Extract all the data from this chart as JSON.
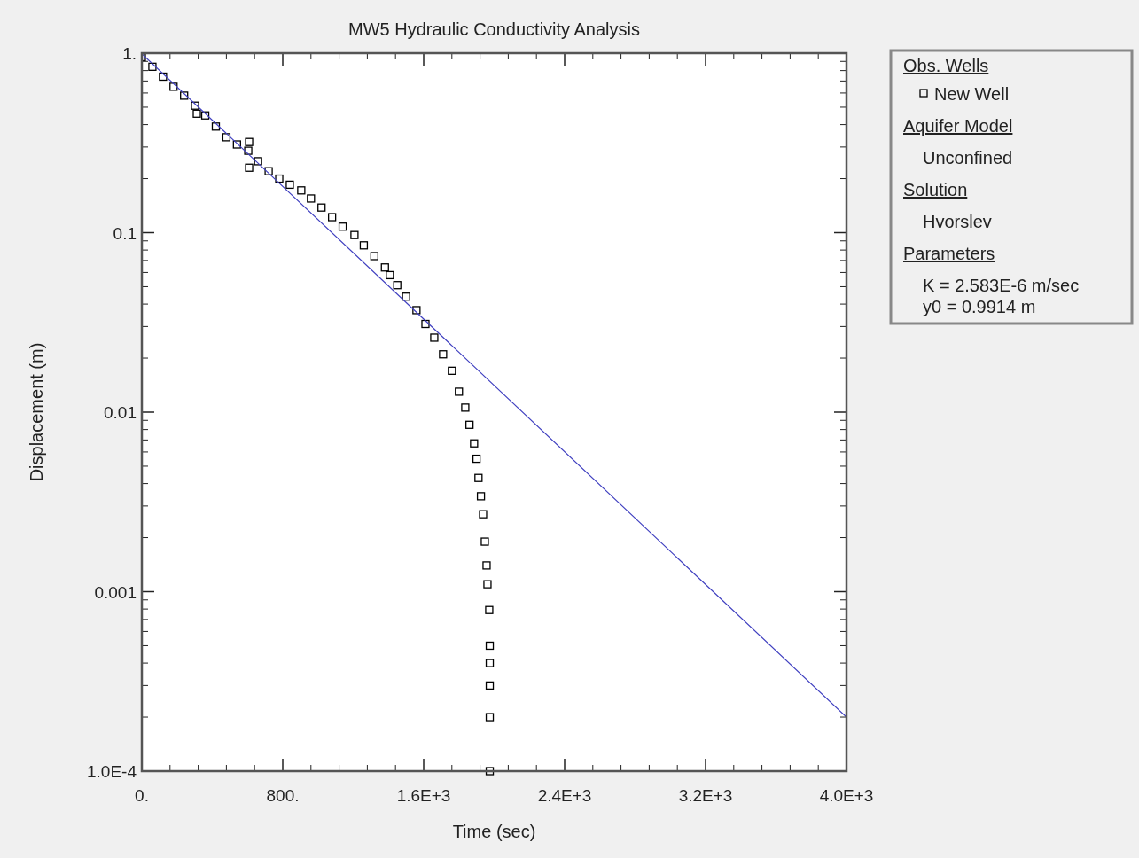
{
  "chart_data": {
    "type": "scatter",
    "title": "MW5 Hydraulic Conductivity Analysis",
    "xlabel": "Time (sec)",
    "ylabel": "Displacement (m)",
    "legend_title": "Obs. Wells",
    "annotations": [
      "Aquifer Model",
      "Unconfined",
      "Solution",
      "Hvorslev",
      "Parameters",
      "K  = 2.583E-6 m/sec",
      "y0 = 0.9914 m"
    ],
    "series": [
      {
        "name": "New Well",
        "color": "#000000",
        "marker": "square",
        "x": [
          0,
          60,
          120,
          180,
          240,
          302,
          312,
          360,
          420,
          480,
          540,
          604,
          609,
          609,
          660,
          720,
          780,
          840,
          905,
          960,
          1020,
          1080,
          1140,
          1207,
          1260,
          1320,
          1380,
          1408,
          1450,
          1500,
          1559,
          1610,
          1660,
          1710,
          1760,
          1800,
          1836,
          1860,
          1886,
          1900,
          1911,
          1925,
          1937,
          1947,
          1957,
          1962,
          1972,
          1975,
          1975,
          1975,
          1975,
          1975
        ],
        "values": [
          0.95,
          0.84,
          0.74,
          0.65,
          0.58,
          0.51,
          0.46,
          0.45,
          0.39,
          0.34,
          0.31,
          0.286,
          0.32,
          0.23,
          0.25,
          0.22,
          0.2,
          0.185,
          0.172,
          0.155,
          0.138,
          0.122,
          0.108,
          0.097,
          0.085,
          0.074,
          0.064,
          0.058,
          0.051,
          0.044,
          0.037,
          0.031,
          0.026,
          0.021,
          0.017,
          0.013,
          0.0106,
          0.0085,
          0.0067,
          0.0055,
          0.0043,
          0.0034,
          0.0027,
          0.0019,
          0.0014,
          0.0011,
          0.00079,
          0.0005,
          0.0004,
          0.0003,
          0.0002,
          0.0001
        ]
      },
      {
        "color": "#4040c0",
        "type": "line",
        "line_style": "solid",
        "x": [
          0,
          1600,
          4000
        ],
        "values": [
          0.9914,
          0.033,
          0.0002
        ]
      }
    ],
    "xlim": [
      0,
      4000
    ],
    "xticks": [
      {
        "value": 0,
        "label": "0."
      },
      {
        "value": 800,
        "label": "800."
      },
      {
        "value": 1600,
        "label": "1.6E+3"
      },
      {
        "value": 2400,
        "label": "2.4E+3"
      },
      {
        "value": 3200,
        "label": "3.2E+3"
      },
      {
        "value": 4000,
        "label": "4.0E+3"
      }
    ],
    "ylim": [
      0.0001,
      1
    ],
    "yticks": [
      {
        "value": 0.0001,
        "label": "1.0E-4"
      },
      {
        "value": 0.001,
        "label": "0.001"
      },
      {
        "value": 0.01,
        "label": "0.01"
      },
      {
        "value": 0.1,
        "label": "0.1"
      },
      {
        "value": 1,
        "label": "1."
      }
    ],
    "log": "y",
    "grid": false,
    "legend": "right"
  }
}
